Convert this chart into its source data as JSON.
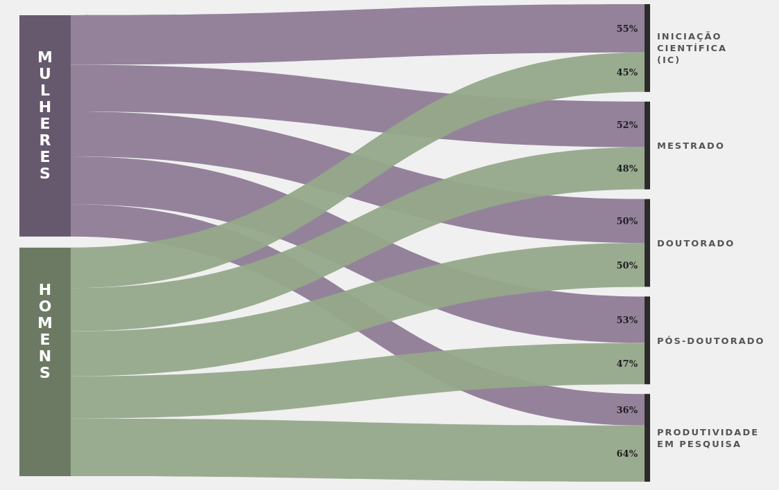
{
  "chart_data": {
    "type": "other",
    "categories": [
      "INICIAÇÃO CIENTÍFICA (IC)",
      "MESTRADO",
      "DOUTORADO",
      "PÓS-DOUTORADO",
      "PRODUTIVIDADE EM PESQUISA"
    ],
    "series": [
      {
        "name": "MULHERES",
        "color": "#8e7b96",
        "values": [
          55,
          52,
          50,
          53,
          36
        ],
        "value_labels": [
          "55%",
          "52%",
          "50%",
          "53%",
          "36%"
        ]
      },
      {
        "name": "HOMENS",
        "color": "#95a88a",
        "values": [
          45,
          48,
          50,
          47,
          64
        ],
        "value_labels": [
          "45%",
          "48%",
          "50%",
          "47%",
          "64%"
        ]
      }
    ]
  }
}
